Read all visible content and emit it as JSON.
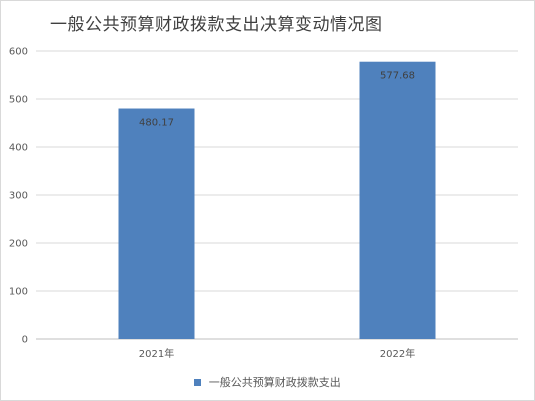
{
  "chart_data": {
    "type": "bar",
    "title": "一般公共预算财政拨款支出决算变动情况图",
    "categories": [
      "2021年",
      "2022年"
    ],
    "series": [
      {
        "name": "一般公共预算财政拨款支出",
        "values": [
          480.17,
          577.68
        ],
        "labels": [
          "480.17",
          "577.68"
        ]
      }
    ],
    "yticks": [
      "0",
      "100",
      "200",
      "300",
      "400",
      "500",
      "600"
    ],
    "ylim": [
      0,
      600
    ],
    "grid": true,
    "legend": "bottom",
    "colors": {
      "bar": "#4f81bd",
      "grid": "#d9d9d9"
    }
  }
}
